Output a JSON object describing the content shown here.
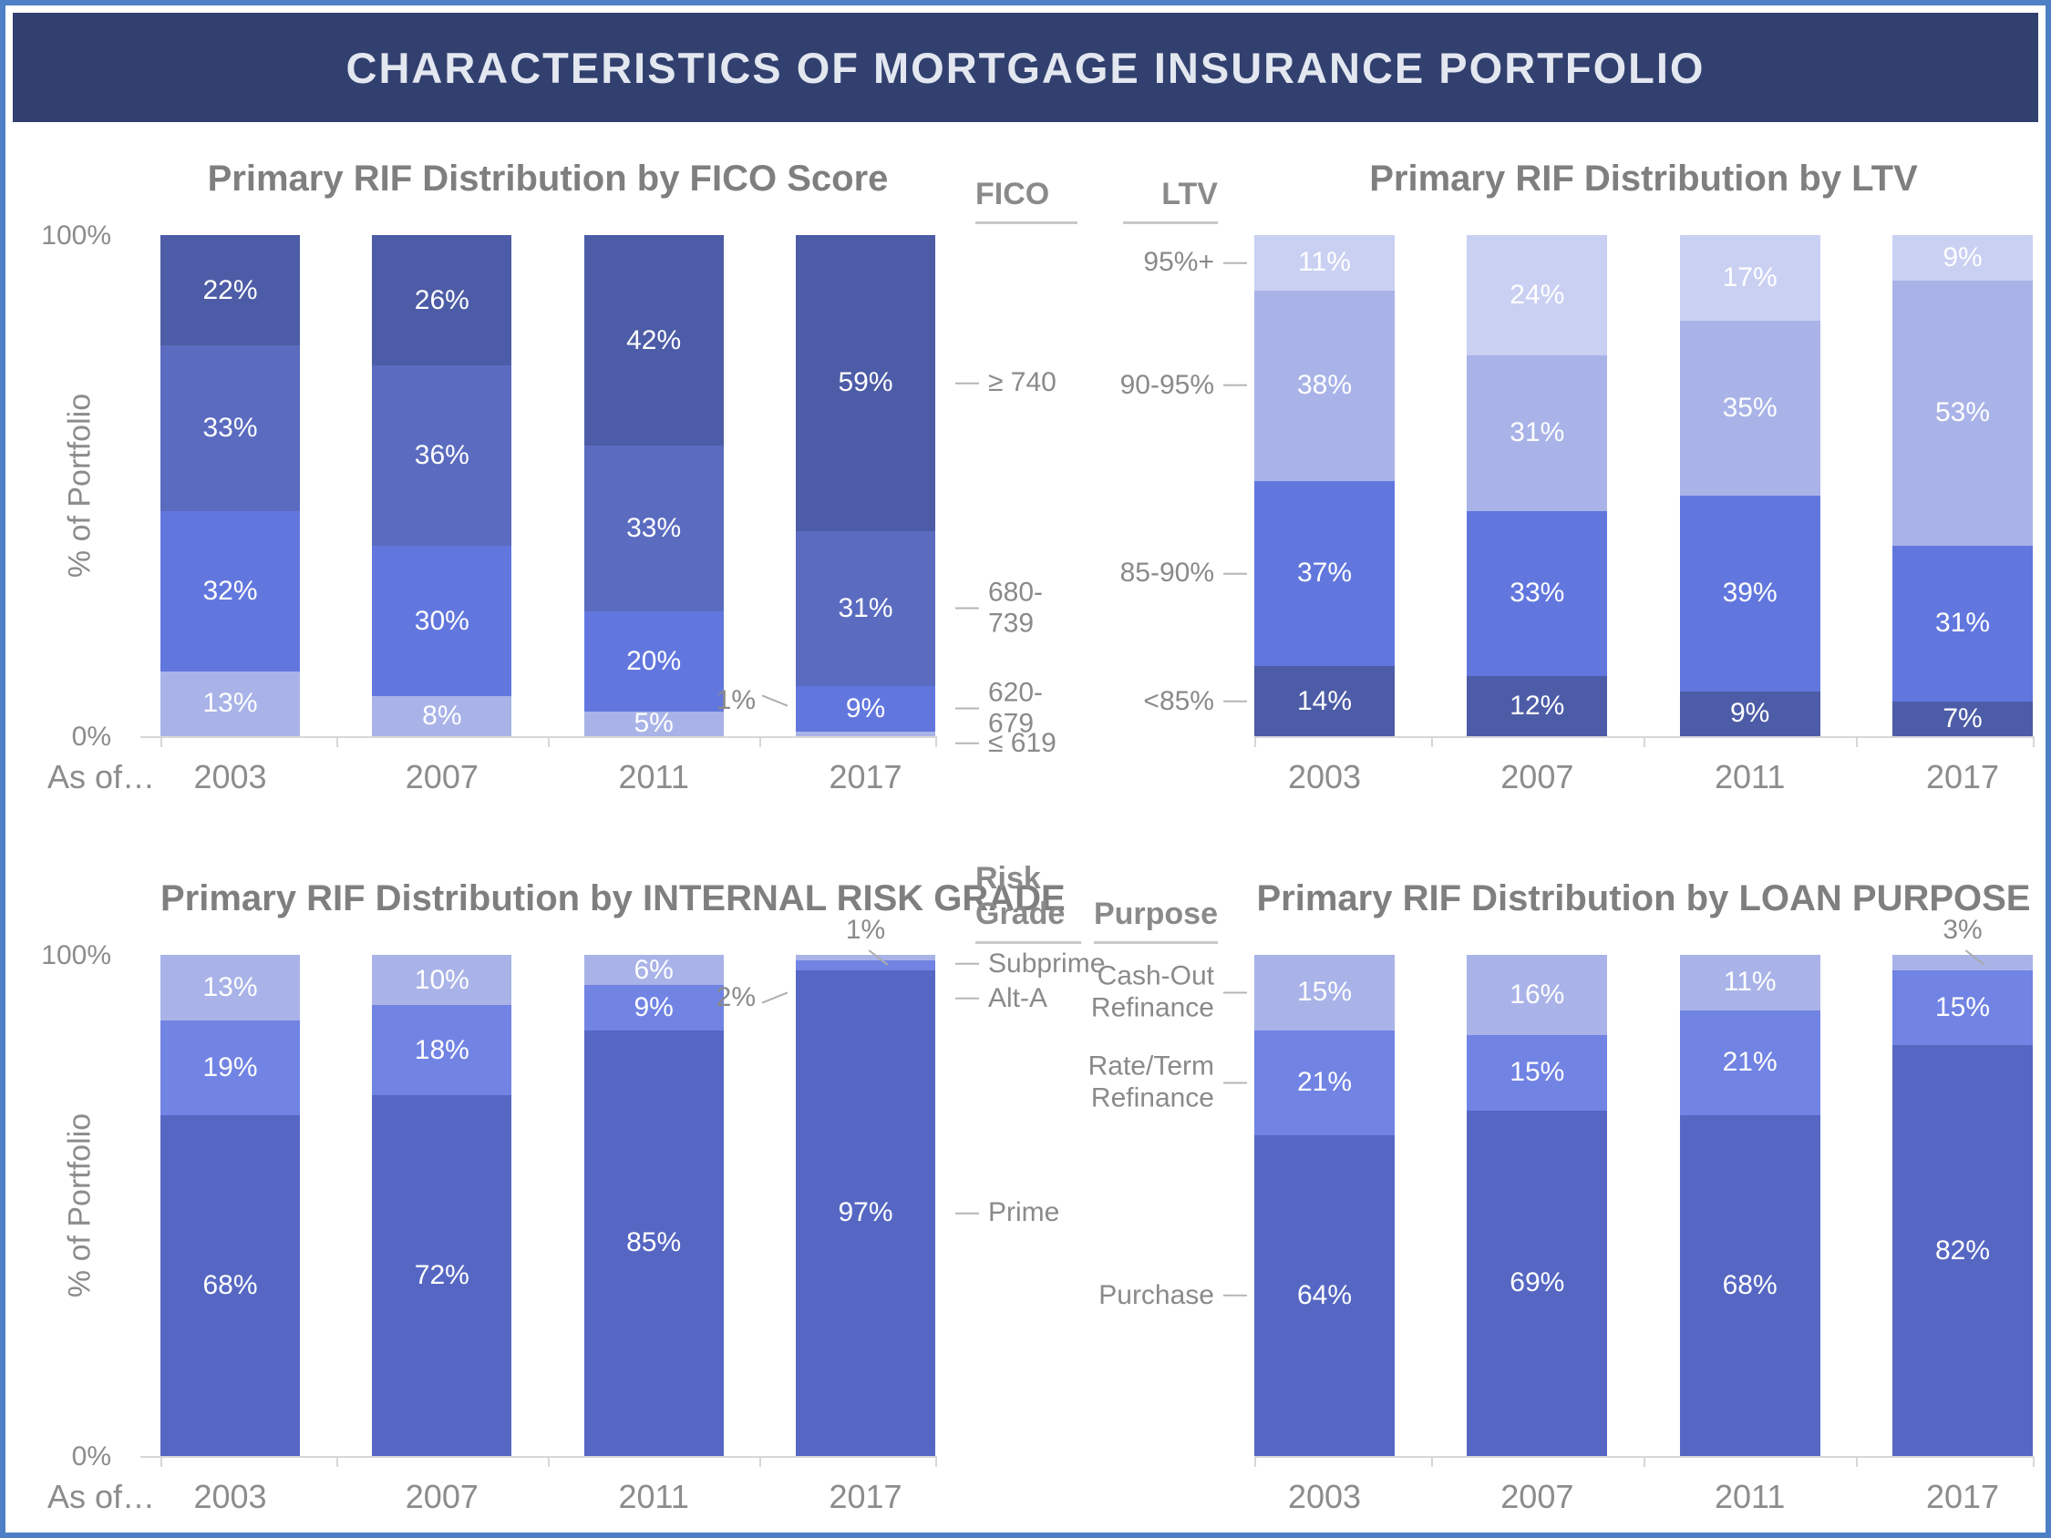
{
  "header": {
    "title": "CHARACTERISTICS OF MORTGAGE INSURANCE PORTFOLIO"
  },
  "colors": {
    "frame_border": "#4d80c4",
    "header_bg": "#31406e",
    "header_text": "#e3e7f0",
    "title_gray": "#7f7f7f",
    "axis_gray": "#8c8c8c"
  },
  "axis": {
    "y_top": "100%",
    "y_bottom": "0%",
    "x_prefix": "As of…"
  },
  "chart_data": [
    {
      "type": "bar",
      "stacked": true,
      "title": "Primary RIF Distribution by FICO Score",
      "ylabel": "% of Portfolio",
      "ylim": [
        0,
        100
      ],
      "grid": false,
      "categories": [
        "2003",
        "2007",
        "2011",
        "2017"
      ],
      "series": [
        {
          "name": "≤ 619",
          "color": "#a9b3e8",
          "values": [
            13,
            8,
            5,
            1
          ]
        },
        {
          "name": "620-679",
          "color": "#6277de",
          "values": [
            32,
            30,
            20,
            9
          ]
        },
        {
          "name": "680-739",
          "color": "#5a6bc0",
          "values": [
            33,
            36,
            33,
            31
          ]
        },
        {
          "name": "≥ 740",
          "color": "#4d5ca6",
          "values": [
            22,
            26,
            42,
            59
          ]
        }
      ],
      "legend": {
        "title": "FICO",
        "side": "right"
      },
      "annotations": [
        {
          "text": "1%",
          "category_index": 3,
          "series_index": 0,
          "side": "left",
          "dy": -36
        }
      ],
      "label_min": 4,
      "show_y_axis": true,
      "show_x_prefix": true
    },
    {
      "type": "bar",
      "stacked": true,
      "title": "Primary RIF Distribution by LTV",
      "ylabel": "",
      "ylim": [
        0,
        100
      ],
      "grid": false,
      "categories": [
        "2003",
        "2007",
        "2011",
        "2017"
      ],
      "series": [
        {
          "name": "<85%",
          "color": "#4d5ca6",
          "values": [
            14,
            12,
            9,
            7
          ]
        },
        {
          "name": "85-90%",
          "color": "#6277de",
          "values": [
            37,
            33,
            39,
            31
          ]
        },
        {
          "name": "90-95%",
          "color": "#a9b3e8",
          "values": [
            38,
            31,
            35,
            53
          ]
        },
        {
          "name": "95%+",
          "color": "#cad0f2",
          "values": [
            11,
            24,
            17,
            9
          ]
        }
      ],
      "legend": {
        "title": "LTV",
        "side": "left"
      },
      "annotations": [],
      "label_min": 4,
      "show_y_axis": false,
      "show_x_prefix": false
    },
    {
      "type": "bar",
      "stacked": true,
      "title": "Primary RIF Distribution by INTERNAL RISK GRADE",
      "ylabel": "% of Portfolio",
      "ylim": [
        0,
        100
      ],
      "grid": false,
      "categories": [
        "2003",
        "2007",
        "2011",
        "2017"
      ],
      "series": [
        {
          "name": "Prime",
          "color": "#5667c3",
          "values": [
            68,
            72,
            85,
            97
          ]
        },
        {
          "name": "Alt-A",
          "color": "#7183e3",
          "values": [
            19,
            18,
            9,
            2
          ]
        },
        {
          "name": "Subprime",
          "color": "#a9b3e8",
          "values": [
            13,
            10,
            6,
            1
          ]
        }
      ],
      "legend": {
        "title": "Risk Grade",
        "side": "right"
      },
      "annotations": [
        {
          "text": "1%",
          "category_index": 3,
          "series_index": 2,
          "side": "top"
        },
        {
          "text": "2%",
          "category_index": 3,
          "series_index": 1,
          "side": "left",
          "dy": 36
        }
      ],
      "label_min": 4,
      "show_y_axis": true,
      "show_x_prefix": true
    },
    {
      "type": "bar",
      "stacked": true,
      "title": "Primary RIF Distribution by LOAN PURPOSE",
      "ylabel": "",
      "ylim": [
        0,
        100
      ],
      "grid": false,
      "categories": [
        "2003",
        "2007",
        "2011",
        "2017"
      ],
      "series": [
        {
          "name": "Purchase",
          "color": "#5667c3",
          "values": [
            64,
            69,
            68,
            82
          ]
        },
        {
          "name": "Rate/Term Refinance",
          "color": "#7183e3",
          "values": [
            21,
            15,
            21,
            15
          ]
        },
        {
          "name": "Cash-Out Refinance",
          "color": "#a9b3e8",
          "values": [
            15,
            16,
            11,
            3
          ]
        }
      ],
      "legend": {
        "title": "Purpose",
        "side": "left"
      },
      "annotations": [
        {
          "text": "3%",
          "category_index": 3,
          "series_index": 2,
          "side": "top"
        }
      ],
      "label_min": 4,
      "show_y_axis": false,
      "show_x_prefix": false
    }
  ]
}
